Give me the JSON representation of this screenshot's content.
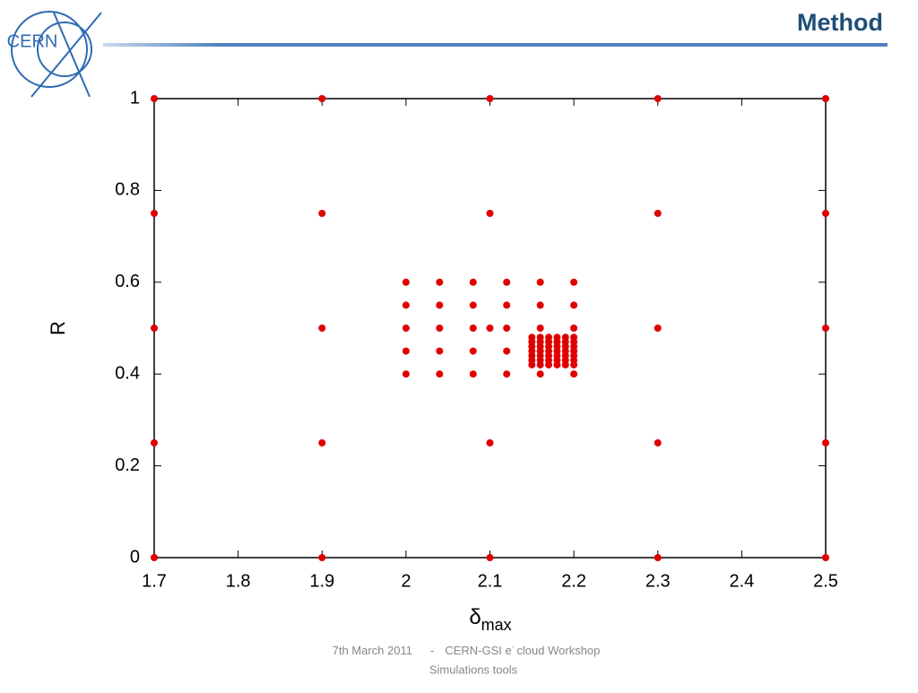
{
  "header": {
    "title": "Method",
    "logo": "CERN"
  },
  "chart_data": {
    "type": "scatter",
    "color": "#e00000",
    "xlabel": "δ",
    "xlabel_sub": "max",
    "ylabel": "R",
    "xlim": [
      1.7,
      2.5
    ],
    "xticks": [
      1.7,
      1.8,
      1.9,
      2,
      2.1,
      2.2,
      2.3,
      2.4,
      2.5
    ],
    "ylim": [
      0,
      1
    ],
    "yticks": [
      0,
      0.2,
      0.4,
      0.6,
      0.8,
      1
    ],
    "x": [
      1.7,
      1.7,
      1.7,
      1.7,
      1.7,
      1.9,
      1.9,
      1.9,
      1.9,
      1.9,
      2.1,
      2.1,
      2.1,
      2.1,
      2.1,
      2.3,
      2.3,
      2.3,
      2.3,
      2.3,
      2.5,
      2.5,
      2.5,
      2.5,
      2.5,
      2,
      2,
      2,
      2,
      2,
      2.04,
      2.04,
      2.04,
      2.04,
      2.04,
      2.08,
      2.08,
      2.08,
      2.08,
      2.08,
      2.12,
      2.12,
      2.12,
      2.12,
      2.12,
      2.16,
      2.16,
      2.16,
      2.16,
      2.16,
      2.2,
      2.2,
      2.2,
      2.2,
      2.2,
      2.15,
      2.15,
      2.15,
      2.15,
      2.15,
      2.15,
      2.15,
      2.16,
      2.16,
      2.16,
      2.16,
      2.16,
      2.16,
      2.16,
      2.17,
      2.17,
      2.17,
      2.17,
      2.17,
      2.17,
      2.17,
      2.18,
      2.18,
      2.18,
      2.18,
      2.18,
      2.18,
      2.18,
      2.19,
      2.19,
      2.19,
      2.19,
      2.19,
      2.19,
      2.19,
      2.2,
      2.2,
      2.2,
      2.2,
      2.2,
      2.2,
      2.2
    ],
    "values": [
      0,
      0.25,
      0.5,
      0.75,
      1,
      0,
      0.25,
      0.5,
      0.75,
      1,
      0,
      0.25,
      0.5,
      0.75,
      1,
      0,
      0.25,
      0.5,
      0.75,
      1,
      0,
      0.25,
      0.5,
      0.75,
      1,
      0.4,
      0.45,
      0.5,
      0.55,
      0.6,
      0.4,
      0.45,
      0.5,
      0.55,
      0.6,
      0.4,
      0.45,
      0.5,
      0.55,
      0.6,
      0.4,
      0.45,
      0.5,
      0.55,
      0.6,
      0.4,
      0.45,
      0.5,
      0.55,
      0.6,
      0.4,
      0.45,
      0.5,
      0.55,
      0.6,
      0.42,
      0.43,
      0.44,
      0.45,
      0.46,
      0.47,
      0.48,
      0.42,
      0.43,
      0.44,
      0.45,
      0.46,
      0.47,
      0.48,
      0.42,
      0.43,
      0.44,
      0.45,
      0.46,
      0.47,
      0.48,
      0.42,
      0.43,
      0.44,
      0.45,
      0.46,
      0.47,
      0.48,
      0.42,
      0.43,
      0.44,
      0.45,
      0.46,
      0.47,
      0.48,
      0.42,
      0.43,
      0.44,
      0.45,
      0.46,
      0.47,
      0.48
    ]
  },
  "footer": {
    "date": "7th March 2011",
    "sep": "-",
    "event_pre": "CERN-GSI e",
    "event_sup": "-",
    "event_post": "cloud  Workshop",
    "line2": "Simulations tools"
  }
}
